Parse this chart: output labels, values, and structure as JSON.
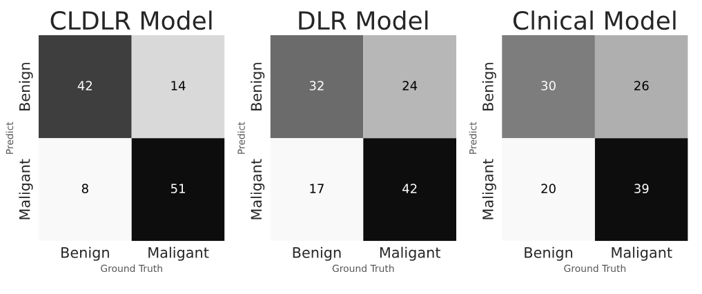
{
  "chart_data": [
    {
      "type": "heatmap",
      "title": "CLDLR Model",
      "xlabel": "Ground Truth",
      "ylabel": "Predict",
      "categories": [
        "Benign",
        "Maligant"
      ],
      "y_categories": [
        "Benign",
        "Maligant"
      ],
      "cells": [
        [
          42,
          14
        ],
        [
          8,
          51
        ]
      ],
      "data_labels": true
    },
    {
      "type": "heatmap",
      "title": "DLR Model",
      "xlabel": "Ground Truth",
      "ylabel": "Predict",
      "categories": [
        "Benign",
        "Maligant"
      ],
      "y_categories": [
        "Benign",
        "Maligant"
      ],
      "cells": [
        [
          32,
          24
        ],
        [
          17,
          42
        ]
      ],
      "data_labels": true
    },
    {
      "type": "heatmap",
      "title": "Clnical Model",
      "xlabel": "Ground Truth",
      "ylabel": "Predict",
      "categories": [
        "Benign",
        "Maligant"
      ],
      "y_categories": [
        "Benign",
        "Maligant"
      ],
      "cells": [
        [
          30,
          26
        ],
        [
          20,
          39
        ]
      ],
      "data_labels": true
    }
  ]
}
